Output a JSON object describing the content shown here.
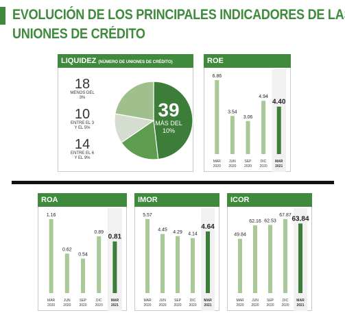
{
  "title": {
    "line1": "EVOLUCIÓN DE LOS PRINCIPALES INDICADORES DE LAS",
    "line2": "UNIONES DE CRÉDITO"
  },
  "colors": {
    "brand_green": "#3f8a3c",
    "bar_light": "#a8c997",
    "bar_dark": "#3d7d3a",
    "pie_dark": "#3d7d3a",
    "pie_mid": "#5e9c4f",
    "pie_light": "#9fc08d",
    "pie_pale": "#d4ddd0"
  },
  "liquidez": {
    "header": "LIQUIDEZ",
    "header_sub": "(NÚMERO DE UNIONES DE CRÉDITO)",
    "items": [
      {
        "value": "18",
        "label_line1": "MENOS DEL",
        "label_line2": "3%"
      },
      {
        "value": "10",
        "label_line1": "ENTRE EL 3",
        "label_line2": "Y EL 5%"
      },
      {
        "value": "14",
        "label_line1": "ENTRE EL 6",
        "label_line2": "Y EL 9%"
      }
    ],
    "main": {
      "value": "39",
      "label_line1": "MÁS DEL",
      "label_line2": "10%"
    }
  },
  "chart_data": [
    {
      "type": "pie",
      "title": "LIQUIDEZ",
      "subtitle": "(NÚMERO DE UNIONES DE CRÉDITO)",
      "slices": [
        {
          "label": "MÁS DEL 10%",
          "value": 39
        },
        {
          "label": "ENTRE EL 6 Y EL 9%",
          "value": 14
        },
        {
          "label": "ENTRE EL 3 Y EL 5%",
          "value": 10
        },
        {
          "label": "MENOS DEL 3%",
          "value": 18
        }
      ]
    },
    {
      "type": "bar",
      "title": "ROE",
      "categories": [
        [
          "MAR",
          "2020"
        ],
        [
          "JUN",
          "2020"
        ],
        [
          "SEP",
          "2020"
        ],
        [
          "DIC",
          "2020"
        ],
        [
          "MAR",
          "2021"
        ]
      ],
      "values": [
        6.86,
        3.54,
        3.06,
        4.94,
        4.4
      ],
      "value_labels": [
        "6.86",
        "3.54",
        "3.06",
        "4.94",
        "4.40"
      ],
      "highlight_last": true
    },
    {
      "type": "bar",
      "title": "ROA",
      "categories": [
        [
          "MAR",
          "2020"
        ],
        [
          "JUN",
          "2020"
        ],
        [
          "SEP",
          "2020"
        ],
        [
          "DIC",
          "2020"
        ],
        [
          "MAR",
          "2021"
        ]
      ],
      "values": [
        1.16,
        0.62,
        0.54,
        0.89,
        0.81
      ],
      "value_labels": [
        "1.16",
        "0.62",
        "0.54",
        "0.89",
        "0.81"
      ],
      "highlight_last": true
    },
    {
      "type": "bar",
      "title": "IMOR",
      "categories": [
        [
          "MAR",
          "2020"
        ],
        [
          "JUN",
          "2020"
        ],
        [
          "SEP",
          "2020"
        ],
        [
          "DIC",
          "2020"
        ],
        [
          "MAR",
          "2021"
        ]
      ],
      "values": [
        5.57,
        4.45,
        4.29,
        4.14,
        4.64
      ],
      "value_labels": [
        "5.57",
        "4.45",
        "4.29",
        "4.14",
        "4.64"
      ],
      "highlight_last": true
    },
    {
      "type": "bar",
      "title": "ICOR",
      "categories": [
        [
          "MAR",
          "2020"
        ],
        [
          "JUN",
          "2020"
        ],
        [
          "SEP",
          "2020"
        ],
        [
          "DIC",
          "2020"
        ],
        [
          "MAR",
          "2021"
        ]
      ],
      "values": [
        49.84,
        62.16,
        62.53,
        67.87,
        63.84
      ],
      "value_labels": [
        "49.84",
        "62.16",
        "62.53",
        "67.87",
        "63.84"
      ],
      "highlight_last": true
    }
  ]
}
